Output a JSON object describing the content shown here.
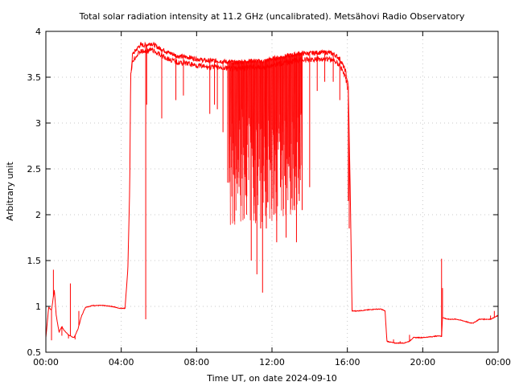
{
  "chart_data": {
    "type": "line",
    "title": "Total solar radiation intensity at 11.2 GHz (uncalibrated). Metsähovi Radio Observatory",
    "xlabel": "Time UT, on date 2024-09-10",
    "ylabel": "Arbitrary unit",
    "xlim": [
      0,
      24
    ],
    "ylim": [
      0.5,
      4
    ],
    "x_ticks": [
      "00:00",
      "04:00",
      "08:00",
      "12:00",
      "16:00",
      "20:00",
      "00:00"
    ],
    "y_ticks": [
      "0.5",
      "1",
      "1.5",
      "2",
      "2.5",
      "3",
      "3.5",
      "4"
    ],
    "grid": true,
    "series": [
      {
        "color": "#ff0000",
        "x_unit": "hours UT",
        "points": [
          [
            0.0,
            0.66
          ],
          [
            0.15,
            0.99
          ],
          [
            0.3,
            0.96
          ],
          [
            0.45,
            1.18
          ],
          [
            0.55,
            0.9
          ],
          [
            0.7,
            0.72
          ],
          [
            0.85,
            0.78
          ],
          [
            1.0,
            0.73
          ],
          [
            1.25,
            0.68
          ],
          [
            1.5,
            0.66
          ],
          [
            1.7,
            0.75
          ],
          [
            1.9,
            0.9
          ],
          [
            2.1,
            0.99
          ],
          [
            2.5,
            1.01
          ],
          [
            3.0,
            1.01
          ],
          [
            3.5,
            1.0
          ],
          [
            3.9,
            0.98
          ],
          [
            4.2,
            0.98
          ],
          [
            4.35,
            1.4
          ],
          [
            4.45,
            2.3
          ],
          [
            4.5,
            3.5
          ],
          [
            4.6,
            3.75
          ],
          [
            4.8,
            3.8
          ],
          [
            5.0,
            3.85
          ],
          [
            5.3,
            3.85
          ],
          [
            5.6,
            3.87
          ],
          [
            6.0,
            3.82
          ],
          [
            6.5,
            3.77
          ],
          [
            7.0,
            3.73
          ],
          [
            7.5,
            3.72
          ],
          [
            8.0,
            3.7
          ],
          [
            8.5,
            3.68
          ],
          [
            9.0,
            3.68
          ],
          [
            9.5,
            3.67
          ],
          [
            10.0,
            3.66
          ],
          [
            10.5,
            3.67
          ],
          [
            11.0,
            3.68
          ],
          [
            11.5,
            3.67
          ],
          [
            12.0,
            3.7
          ],
          [
            12.5,
            3.72
          ],
          [
            13.0,
            3.74
          ],
          [
            13.5,
            3.76
          ],
          [
            14.0,
            3.76
          ],
          [
            14.5,
            3.77
          ],
          [
            15.0,
            3.77
          ],
          [
            15.3,
            3.75
          ],
          [
            15.6,
            3.7
          ],
          [
            15.9,
            3.57
          ],
          [
            16.05,
            3.4
          ],
          [
            16.15,
            2.3
          ],
          [
            16.25,
            0.95
          ],
          [
            16.5,
            0.95
          ],
          [
            17.0,
            0.96
          ],
          [
            17.5,
            0.97
          ],
          [
            17.8,
            0.97
          ],
          [
            18.0,
            0.95
          ],
          [
            18.1,
            0.62
          ],
          [
            18.5,
            0.6
          ],
          [
            19.0,
            0.6
          ],
          [
            19.3,
            0.62
          ],
          [
            19.5,
            0.66
          ],
          [
            20.0,
            0.66
          ],
          [
            20.5,
            0.67
          ],
          [
            20.9,
            0.68
          ],
          [
            21.0,
            0.67
          ],
          [
            21.05,
            0.88
          ],
          [
            21.3,
            0.86
          ],
          [
            21.8,
            0.86
          ],
          [
            22.2,
            0.84
          ],
          [
            22.5,
            0.82
          ],
          [
            22.7,
            0.82
          ],
          [
            23.0,
            0.86
          ],
          [
            23.3,
            0.86
          ],
          [
            23.6,
            0.86
          ],
          [
            23.8,
            0.88
          ],
          [
            24.0,
            0.9
          ]
        ],
        "dips": [
          [
            0.3,
            0.63
          ],
          [
            0.4,
            1.4
          ],
          [
            0.85,
            0.68
          ],
          [
            1.2,
            0.65
          ],
          [
            1.3,
            1.25
          ],
          [
            1.55,
            0.64
          ],
          [
            1.75,
            0.95
          ],
          [
            5.3,
            0.86
          ],
          [
            5.35,
            3.2
          ],
          [
            6.15,
            3.05
          ],
          [
            6.9,
            3.25
          ],
          [
            7.3,
            3.3
          ],
          [
            8.7,
            3.1
          ],
          [
            8.95,
            3.2
          ],
          [
            9.1,
            3.15
          ],
          [
            9.4,
            2.9
          ],
          [
            9.65,
            2.35
          ],
          [
            9.9,
            2.7
          ],
          [
            10.25,
            2.4
          ],
          [
            10.4,
            3.15
          ],
          [
            10.5,
            2.65
          ],
          [
            10.65,
            2.0
          ],
          [
            10.9,
            1.5
          ],
          [
            11.05,
            2.1
          ],
          [
            11.2,
            1.35
          ],
          [
            11.4,
            1.85
          ],
          [
            11.5,
            1.15
          ],
          [
            11.65,
            2.25
          ],
          [
            11.7,
            1.85
          ],
          [
            11.85,
            2.6
          ],
          [
            12.1,
            2.0
          ],
          [
            12.25,
            1.7
          ],
          [
            12.45,
            2.3
          ],
          [
            12.55,
            2.7
          ],
          [
            12.75,
            1.75
          ],
          [
            12.95,
            2.4
          ],
          [
            13.2,
            2.05
          ],
          [
            13.3,
            1.7
          ],
          [
            13.45,
            2.15
          ],
          [
            13.6,
            2.05
          ],
          [
            14.0,
            2.3
          ],
          [
            14.4,
            3.35
          ],
          [
            14.8,
            3.45
          ],
          [
            15.25,
            3.45
          ],
          [
            15.6,
            3.25
          ],
          [
            16.05,
            2.15
          ],
          [
            16.1,
            1.85
          ],
          [
            18.45,
            0.64
          ],
          [
            18.8,
            0.62
          ],
          [
            19.3,
            0.69
          ],
          [
            21.0,
            1.52
          ],
          [
            21.05,
            1.2
          ],
          [
            23.6,
            0.9
          ],
          [
            23.8,
            0.95
          ]
        ]
      }
    ]
  }
}
